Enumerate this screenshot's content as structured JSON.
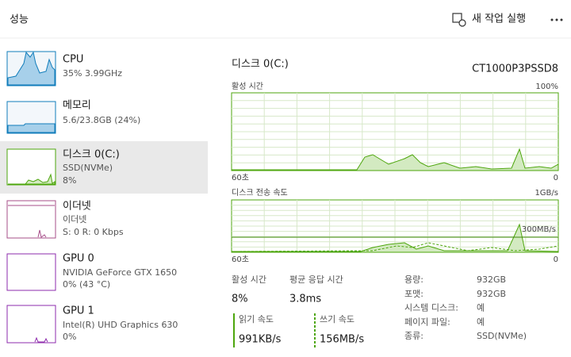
{
  "header": {
    "title": "성능",
    "run_task": "새 작업 실행"
  },
  "sidebar": [
    {
      "name": "CPU",
      "details": [
        "35% 3.99GHz"
      ]
    },
    {
      "name": "메모리",
      "details": [
        "5.6/23.8GB (24%)"
      ]
    },
    {
      "name": "디스크 0(C:)",
      "details": [
        "SSD(NVMe)",
        "8%"
      ]
    },
    {
      "name": "이더넷",
      "details": [
        "이더넷",
        "S: 0 R: 0 Kbps"
      ]
    },
    {
      "name": "GPU 0",
      "details": [
        "NVIDIA GeForce GTX 1650",
        "0% (43 °C)"
      ]
    },
    {
      "name": "GPU 1",
      "details": [
        "Intel(R) UHD Graphics 630",
        "0%"
      ]
    }
  ],
  "main": {
    "title": "디스크 0(C:)",
    "model": "CT1000P3PSSD8",
    "activity_chart": {
      "label": "활성 시간",
      "max": "100%",
      "time": "60초",
      "min": "0"
    },
    "transfer_chart": {
      "label": "디스크 전송 속도",
      "max": "1GB/s",
      "marker": "300MB/s",
      "time": "60초",
      "min": "0"
    },
    "stats": [
      {
        "label": "활성 시간",
        "value": "8%"
      },
      {
        "label": "평균 응답 시간",
        "value": "3.8ms"
      },
      {
        "label": "읽기 속도",
        "value": "991KB/s"
      },
      {
        "label": "쓰기 속도",
        "value": "156MB/s"
      }
    ],
    "properties": [
      {
        "label": "용량:",
        "value": "932GB"
      },
      {
        "label": "포맷:",
        "value": "932GB"
      },
      {
        "label": "시스템 디스크:",
        "value": "예"
      },
      {
        "label": "페이지 파일:",
        "value": "예"
      },
      {
        "label": "종류:",
        "value": "SSD(NVMe)"
      }
    ]
  }
}
